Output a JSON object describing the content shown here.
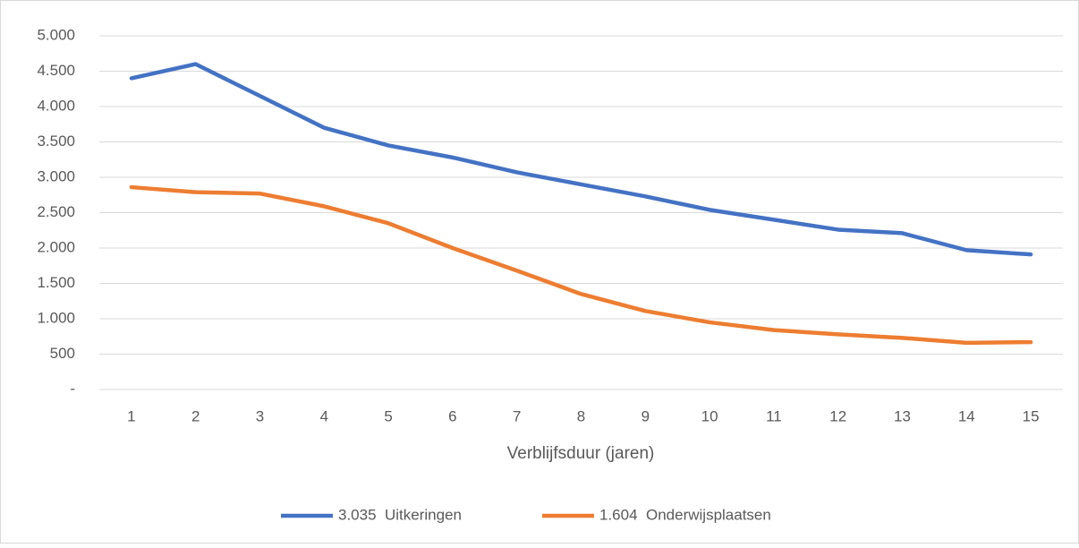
{
  "chart_data": {
    "type": "line",
    "x_label": "Verblijfsduur (jaren)",
    "categories": [
      "1",
      "2",
      "3",
      "4",
      "5",
      "6",
      "7",
      "8",
      "9",
      "10",
      "11",
      "12",
      "13",
      "14",
      "15"
    ],
    "series": [
      {
        "name": "3.035  Uitkeringen",
        "color": "#4472c4",
        "values": [
          4400,
          4600,
          4150,
          3700,
          3450,
          3280,
          3070,
          2900,
          2730,
          2540,
          2400,
          2260,
          2210,
          1970,
          1910
        ]
      },
      {
        "name": "1.604  Onderwijsplaatsen",
        "color": "#ed7d31",
        "values": [
          2860,
          2790,
          2770,
          2590,
          2350,
          2000,
          1680,
          1350,
          1110,
          950,
          840,
          780,
          730,
          660,
          670
        ]
      }
    ],
    "ylim": [
      0,
      5000
    ],
    "yticks": [
      {
        "value": 0,
        "label": "-"
      },
      500,
      {
        "value": 1000,
        "label": "1.000"
      },
      {
        "value": 1500,
        "label": "1.500"
      },
      {
        "value": 2000,
        "label": "2.000"
      },
      {
        "value": 2500,
        "label": "2.500"
      },
      {
        "value": 3000,
        "label": "3.000"
      },
      {
        "value": 3500,
        "label": "3.500"
      },
      {
        "value": 4000,
        "label": "4.000"
      },
      {
        "value": 4500,
        "label": "4.500"
      },
      {
        "value": 5000,
        "label": "5.000"
      }
    ],
    "grid": true,
    "legend": "bottom"
  }
}
